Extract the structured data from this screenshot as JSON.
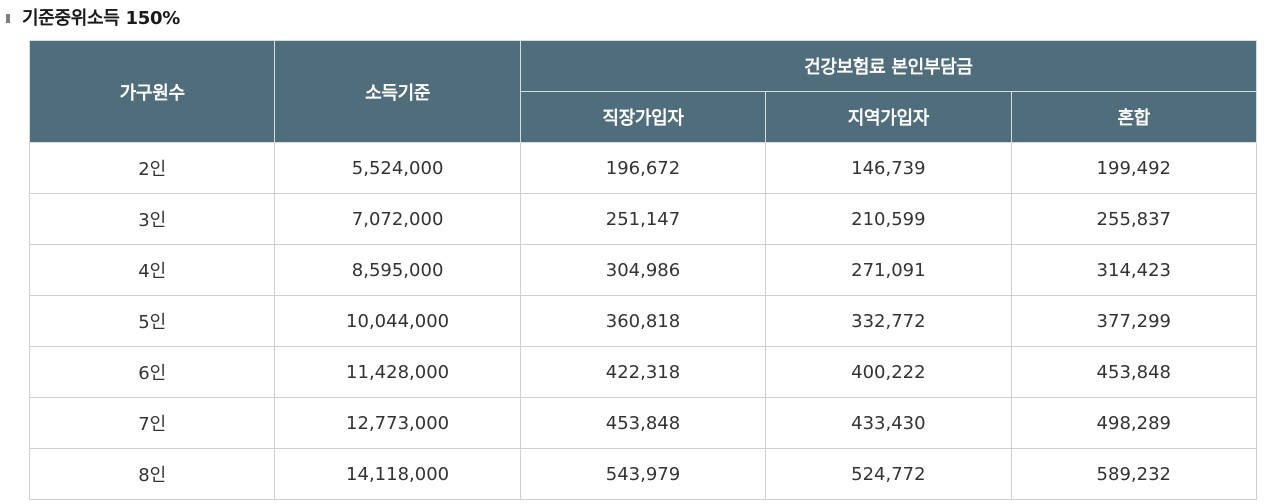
{
  "heading": "기준중위소득 150%",
  "table": {
    "headers": {
      "household": "가구원수",
      "income": "소득기준",
      "premium_group": "건강보험료 본인부담금",
      "employee": "직장가입자",
      "regional": "지역가입자",
      "mixed": "혼합"
    },
    "rows": [
      {
        "household": "2인",
        "income": "5,524,000",
        "employee": "196,672",
        "regional": "146,739",
        "mixed": "199,492"
      },
      {
        "household": "3인",
        "income": "7,072,000",
        "employee": "251,147",
        "regional": "210,599",
        "mixed": "255,837"
      },
      {
        "household": "4인",
        "income": "8,595,000",
        "employee": "304,986",
        "regional": "271,091",
        "mixed": "314,423"
      },
      {
        "household": "5인",
        "income": "10,044,000",
        "employee": "360,818",
        "regional": "332,772",
        "mixed": "377,299"
      },
      {
        "household": "6인",
        "income": "11,428,000",
        "employee": "422,318",
        "regional": "400,222",
        "mixed": "453,848"
      },
      {
        "household": "7인",
        "income": "12,773,000",
        "employee": "453,848",
        "regional": "433,430",
        "mixed": "498,289"
      },
      {
        "household": "8인",
        "income": "14,118,000",
        "employee": "543,979",
        "regional": "524,772",
        "mixed": "589,232"
      }
    ]
  },
  "colors": {
    "header_background": "#4f6d7a",
    "header_text": "#ffffff",
    "cell_border": "#cfcfcf"
  }
}
